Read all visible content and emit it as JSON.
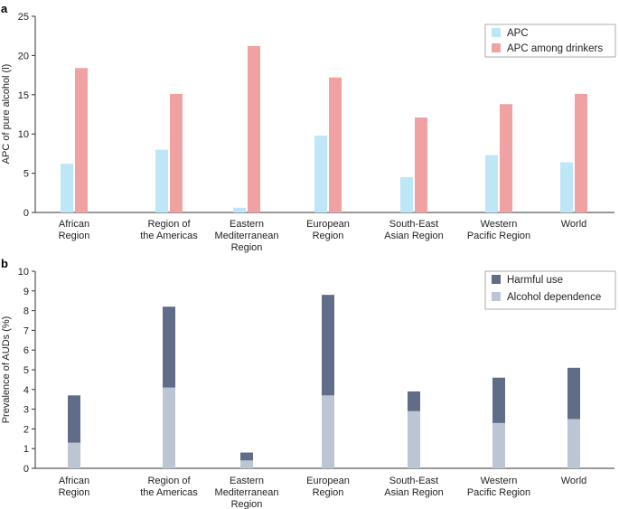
{
  "colors": {
    "apc": "#bde6f6",
    "apc_drinkers": "#f0a2a2",
    "harmful_use": "#5f6d88",
    "alcohol_dependence": "#bcc5d4"
  },
  "chart_data": [
    {
      "panel_label": "a",
      "type": "bar",
      "ylabel": "APC of pure alcohol (l)",
      "xlabel": "",
      "ylim": [
        0,
        25
      ],
      "yticks": [
        "0",
        "5",
        "10",
        "15",
        "20",
        "25"
      ],
      "categories": [
        [
          "African",
          "Region"
        ],
        [
          "Region of",
          "the Americas"
        ],
        [
          "Eastern",
          "Mediterranean",
          "Region"
        ],
        [
          "European",
          "Region"
        ],
        [
          "South-East",
          "Asian Region"
        ],
        [
          "Western",
          "Pacific Region"
        ],
        [
          "World"
        ]
      ],
      "legend_position": "top-right",
      "series": [
        {
          "name": "APC",
          "color_key": "apc",
          "values": [
            6.2,
            8.0,
            0.6,
            9.8,
            4.5,
            7.3,
            6.4
          ]
        },
        {
          "name": "APC among drinkers",
          "color_key": "apc_drinkers",
          "values": [
            18.4,
            15.1,
            21.2,
            17.2,
            12.1,
            13.8,
            15.1
          ]
        }
      ]
    },
    {
      "panel_label": "b",
      "type": "bar",
      "stacked": true,
      "ylabel": "Prevalence of AUDs (%)",
      "xlabel": "",
      "ylim": [
        0,
        10
      ],
      "yticks": [
        "0",
        "1",
        "2",
        "3",
        "4",
        "5",
        "6",
        "7",
        "8",
        "9",
        "10"
      ],
      "categories": [
        [
          "African",
          "Region"
        ],
        [
          "Region of",
          "the Americas"
        ],
        [
          "Eastern",
          "Mediterranean",
          "Region"
        ],
        [
          "European",
          "Region"
        ],
        [
          "South-East",
          "Asian Region"
        ],
        [
          "Western",
          "Pacific Region"
        ],
        [
          "World"
        ]
      ],
      "legend_position": "top-right",
      "legend_order": [
        "Harmful use",
        "Alcohol dependence"
      ],
      "series": [
        {
          "name": "Alcohol dependence",
          "color_key": "alcohol_dependence",
          "values": [
            1.3,
            4.1,
            0.4,
            3.7,
            2.9,
            2.3,
            2.5
          ]
        },
        {
          "name": "Harmful use",
          "color_key": "harmful_use",
          "values": [
            2.4,
            4.1,
            0.4,
            5.1,
            1.0,
            2.3,
            2.6
          ]
        }
      ]
    }
  ]
}
